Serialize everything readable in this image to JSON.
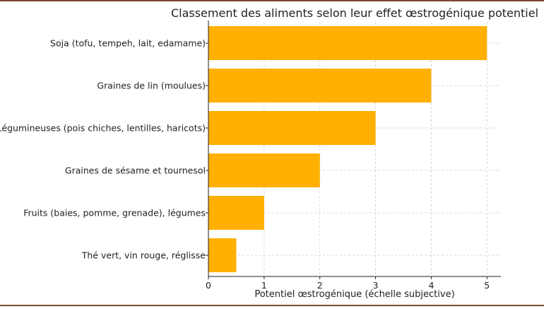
{
  "chart_data": {
    "type": "bar",
    "orientation": "horizontal",
    "title": "Classement des aliments selon leur effet œstrogénique potentiel",
    "xlabel": "Potentiel œstrogénique (échelle subjective)",
    "ylabel": "",
    "categories": [
      "Soja (tofu, tempeh, lait, edamame)",
      "Graines de lin (moulues)",
      "Légumineuses (pois chiches, lentilles, haricots)",
      "Graines de sésame et tournesol",
      "Fruits (baies, pomme, grenade), légumes",
      "Thé vert, vin rouge, réglisse"
    ],
    "values": [
      5,
      4,
      3,
      2,
      1,
      0.5
    ],
    "xlim": [
      0,
      5.25
    ],
    "xticks": [
      0,
      1,
      2,
      3,
      4,
      5
    ],
    "grid": true,
    "bar_color": "#ffb000",
    "grid_color": "#cccccc",
    "frame_color": "#7a4a2c"
  }
}
